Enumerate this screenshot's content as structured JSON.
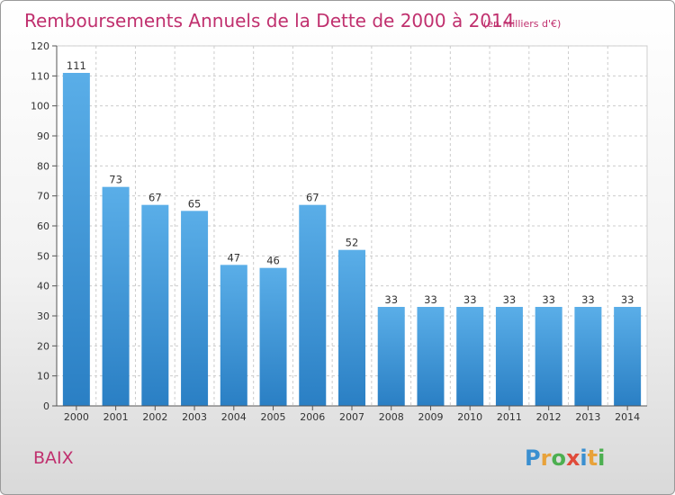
{
  "title": "Remboursements Annuels de la Dette de 2000 à 2014",
  "subtitle": "(en milliers d'€)",
  "commune": "BAIX",
  "logo_text": "Proxiti",
  "colors": {
    "title": "#c0306e",
    "bar_top": "#5aaee8",
    "bar_bottom": "#2a7fc4",
    "grid": "#cccccc"
  },
  "chart_data": {
    "type": "bar",
    "categories": [
      "2000",
      "2001",
      "2002",
      "2003",
      "2004",
      "2005",
      "2006",
      "2007",
      "2008",
      "2009",
      "2010",
      "2011",
      "2012",
      "2013",
      "2014"
    ],
    "values": [
      111,
      73,
      67,
      65,
      47,
      46,
      67,
      52,
      33,
      33,
      33,
      33,
      33,
      33,
      33
    ],
    "ylim": [
      0,
      120
    ],
    "yticks": [
      0,
      10,
      20,
      30,
      40,
      50,
      60,
      70,
      80,
      90,
      100,
      110,
      120
    ],
    "grid": true
  }
}
